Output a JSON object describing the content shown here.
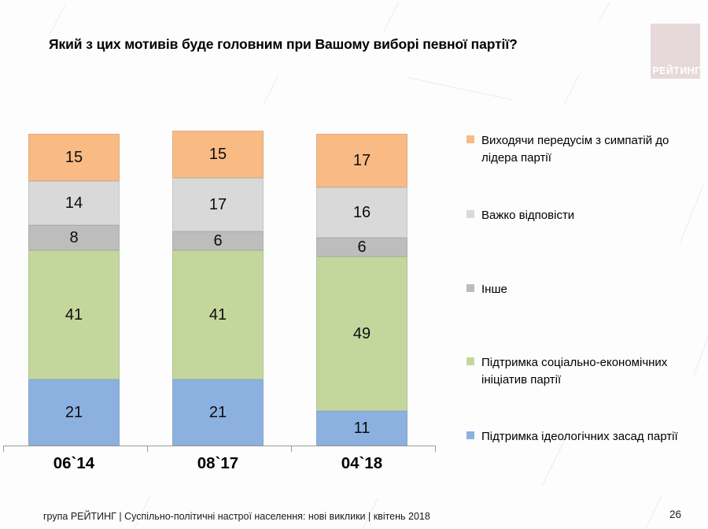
{
  "title": "Який з цих мотивів буде головним при Вашому виборі певної партії?",
  "logo": {
    "text": "РЕЙТИНГ",
    "bg": "#e7d8d9"
  },
  "footer": {
    "text": "група РЕЙТИНГ  |  Суспільно-політичні настрої населення: нові виклики  |  квітень 2018",
    "page": "26"
  },
  "chart_data": {
    "type": "bar",
    "stacked": true,
    "orientation": "vertical",
    "categories": [
      "06`14",
      "08`17",
      "04`18"
    ],
    "series": [
      {
        "name": "Виходячи передусім з симпатій до лідера партії",
        "color": "#f9ba84",
        "values": [
          15,
          15,
          17
        ]
      },
      {
        "name": "Важко відповісти",
        "color": "#d9d9d9",
        "values": [
          14,
          17,
          16
        ]
      },
      {
        "name": "Інше",
        "color": "#bdbdbd",
        "values": [
          8,
          6,
          6
        ]
      },
      {
        "name": "Підтримка соціально-економічних ініціатив партії",
        "color": "#c3d79d",
        "values": [
          41,
          41,
          49
        ]
      },
      {
        "name": "Підтримка ідеологічних засад партії",
        "color": "#8cb1e0",
        "values": [
          21,
          21,
          11
        ]
      }
    ],
    "ylim": [
      0,
      100
    ],
    "value_labels": true,
    "grid": false,
    "legend_position": "right",
    "axis_color": "#9b9b9b"
  }
}
